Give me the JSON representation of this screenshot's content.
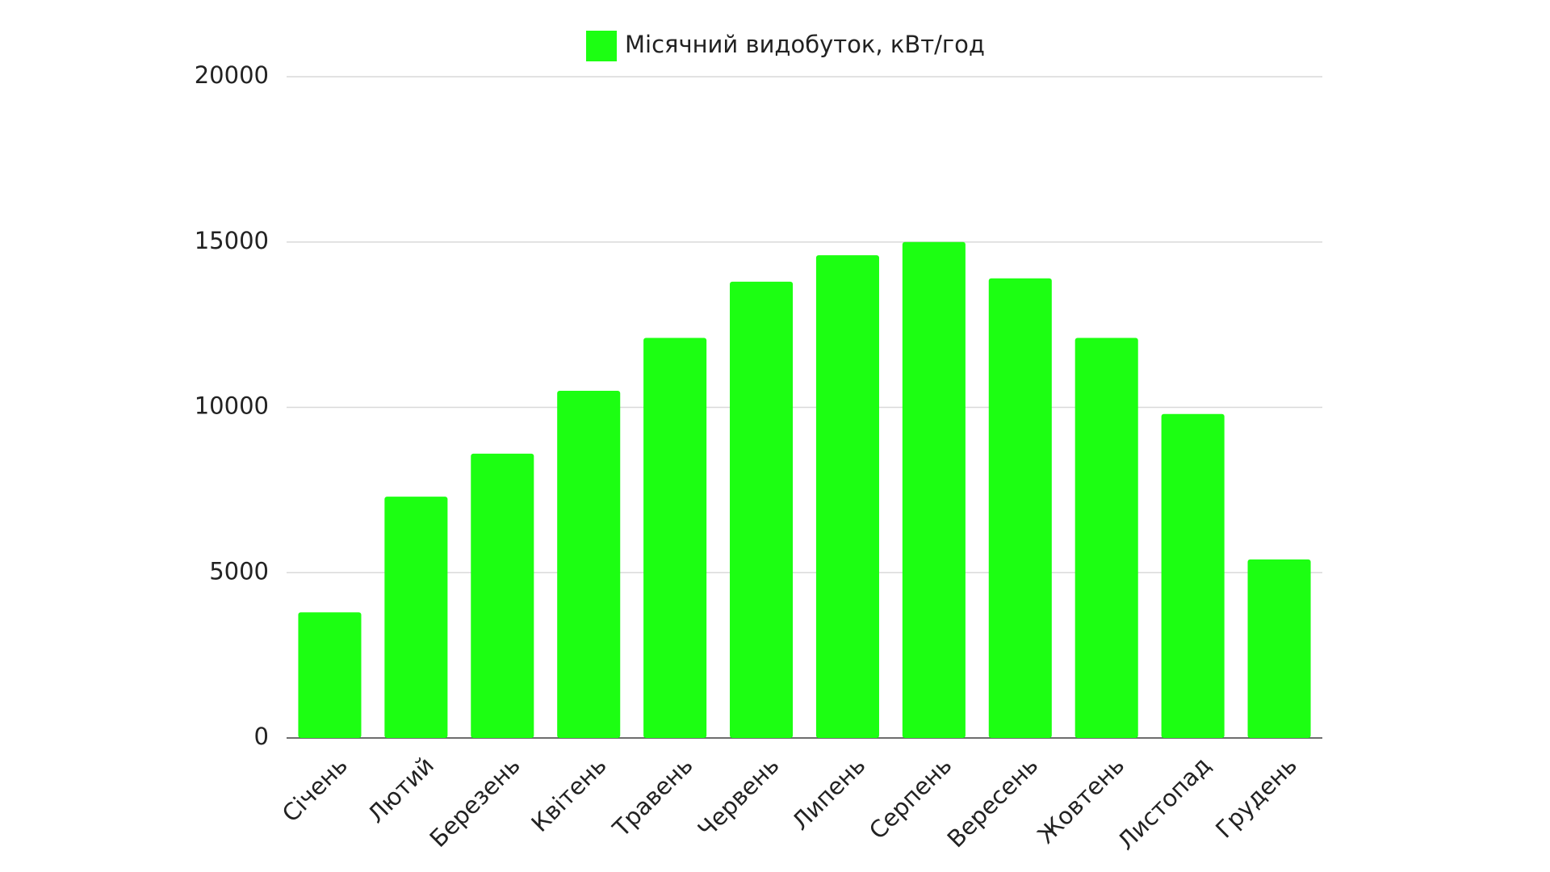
{
  "chart_data": {
    "type": "bar",
    "categories": [
      "Січень",
      "Лютий",
      "Березень",
      "Квітень",
      "Травень",
      "Червень",
      "Липень",
      "Серпень",
      "Вересень",
      "Жовтень",
      "Листопад",
      "Грудень"
    ],
    "series": [
      {
        "name": "Місячний видобуток, кВт/год",
        "color": "#1cff12",
        "values": [
          3800,
          7300,
          8600,
          10500,
          12100,
          13800,
          14600,
          15000,
          13900,
          12100,
          9800,
          5400
        ]
      }
    ],
    "ylim": [
      0,
      20000
    ],
    "yticks": [
      0,
      5000,
      10000,
      15000,
      20000
    ],
    "grid": true,
    "legend": "top"
  }
}
